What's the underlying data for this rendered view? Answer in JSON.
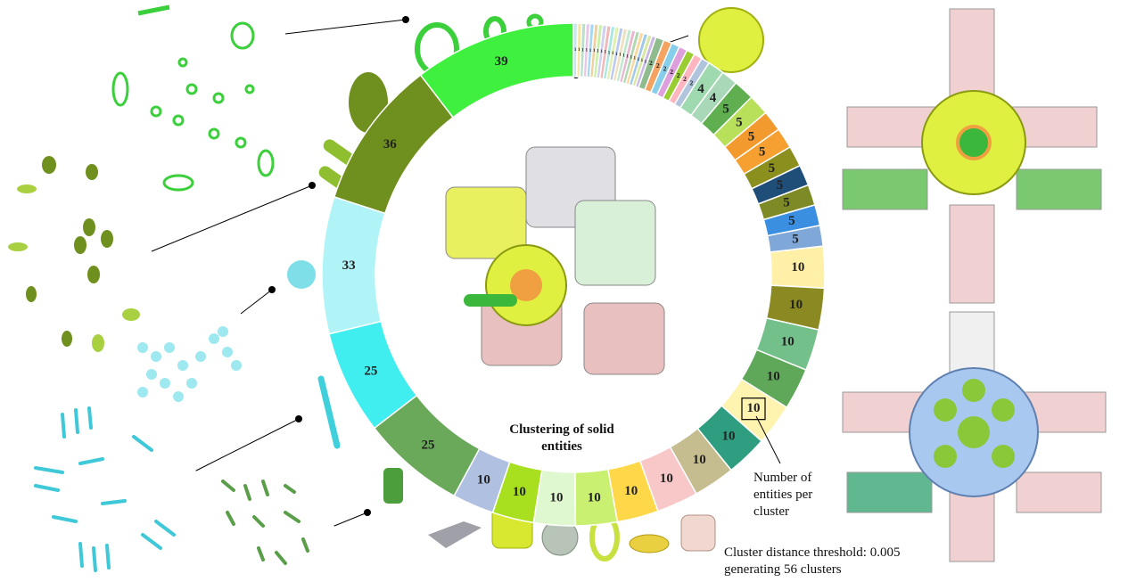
{
  "chart_data": {
    "type": "donut",
    "title": "Clustering of solid entities",
    "values": [
      1,
      1,
      1,
      1,
      1,
      1,
      1,
      1,
      1,
      1,
      1,
      1,
      1,
      1,
      1,
      1,
      1,
      1,
      1,
      1,
      2,
      2,
      2,
      2,
      2,
      2,
      2,
      4,
      4,
      5,
      5,
      5,
      5,
      5,
      5,
      5,
      5,
      5,
      10,
      10,
      10,
      10,
      10,
      10,
      10,
      10,
      10,
      10,
      10,
      10,
      10,
      25,
      25,
      33,
      36,
      39
    ],
    "colors": [
      "#c7e6f0",
      "#f5e6a8",
      "#b8e0c8",
      "#e8c8e8",
      "#a8d8f0",
      "#f0d0a0",
      "#c8f0a8",
      "#d0d0f0",
      "#f0b8b8",
      "#a8e8e0",
      "#e0f0b0",
      "#b8c8f0",
      "#f0e0c0",
      "#c0e8d0",
      "#e8b8d0",
      "#b0d8b0",
      "#f8d8a0",
      "#a0c8e8",
      "#d8e8a0",
      "#c8b8e8",
      "#8fbc8f",
      "#f4a460",
      "#87ceeb",
      "#dda0dd",
      "#9acd32",
      "#ffb6c1",
      "#b0c4de",
      "#9ed9b0",
      "#a9d8b8",
      "#5fae4f",
      "#b9e05a",
      "#f39a2e",
      "#f5a030",
      "#8b8f1e",
      "#1f4e79",
      "#7e8a26",
      "#3b8fe0",
      "#7fa8d8",
      "#fff0a8",
      "#8b8a22",
      "#74c08a",
      "#5fa85a",
      "#fff3b0",
      "#2f9e80",
      "#c5bc8f",
      "#f8c8c8",
      "#ffd84a",
      "#c9f070",
      "#e0f8d0",
      "#a8e020",
      "#b0c0e0",
      "#6aa85a",
      "#40eef0",
      "#b0f4f8",
      "#6f8f1e",
      "#3ff03f"
    ],
    "highlight": 42,
    "annotation": "Number of entities per cluster",
    "caption": "Cluster distance threshold: 0.005 generating 56 clusters"
  }
}
